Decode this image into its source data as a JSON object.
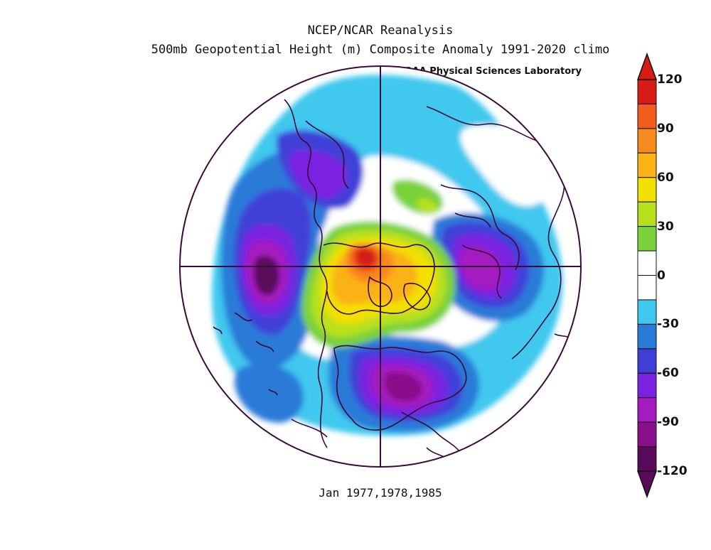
{
  "header": {
    "title": "NCEP/NCAR Reanalysis",
    "subtitle": "500mb Geopotential Height (m) Composite Anomaly 1991-2020 climo",
    "lab": "NOAA Physical Sciences Laboratory"
  },
  "footer": {
    "caption": "Jan 1977,1978,1985"
  },
  "colorbar": {
    "ticks": [
      "120",
      "90",
      "60",
      "30",
      "0",
      "-30",
      "-60",
      "-90",
      "-120"
    ],
    "colors": [
      "#5a0a5a",
      "#8a0f8a",
      "#a41cc0",
      "#7a22e0",
      "#3f3fd8",
      "#2a7ad8",
      "#3fc8ee",
      "#ffffff",
      "#ffffff",
      "#7ad23a",
      "#b8e01a",
      "#f2e000",
      "#fbb214",
      "#f78a1c",
      "#f25c1c",
      "#d61a14"
    ]
  }
}
